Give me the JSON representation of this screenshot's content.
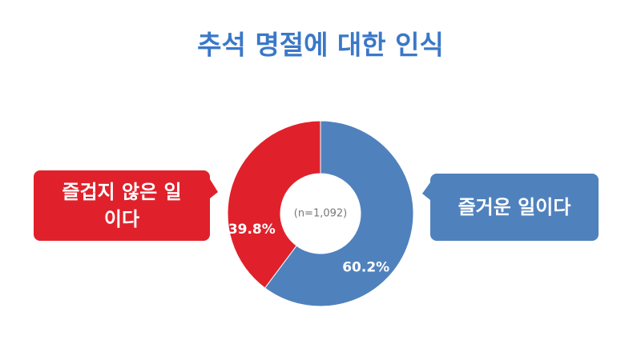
{
  "chart_data": {
    "type": "donut",
    "title": "추석 명절에 대한 인식",
    "categories": [
      "즐거운 일이다",
      "즐겁지 않은 일이다"
    ],
    "values": [
      60.2,
      39.8
    ],
    "value_labels": [
      "60.2%",
      "39.8%"
    ],
    "colors": [
      "#4f81bd",
      "#e0212b"
    ],
    "center_label": "(n=1,092)"
  }
}
